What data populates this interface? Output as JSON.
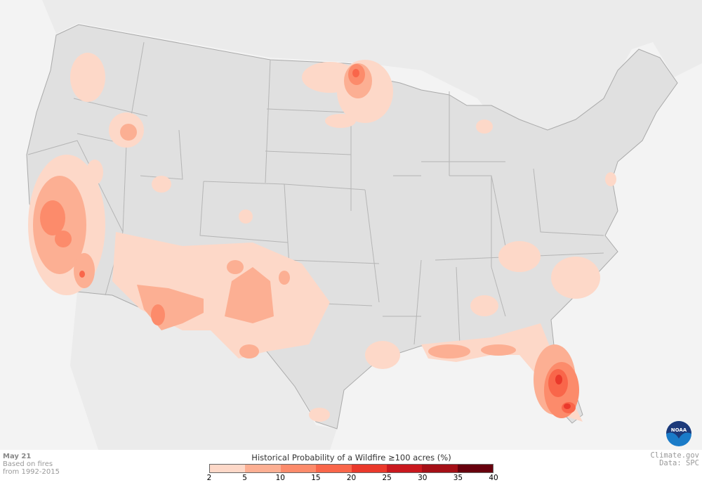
{
  "footer": {
    "date": "May 21",
    "note_line1": "Based on fires",
    "note_line2": "from 1992-2015",
    "credit": "Climate.gov",
    "data_source": "Data: SPC"
  },
  "legend": {
    "title": "Historical Probability of a Wildfire ≥100 acres (%)",
    "ticks": [
      "2",
      "5",
      "10",
      "15",
      "20",
      "25",
      "30",
      "35",
      "40"
    ],
    "colors": [
      "#fdd8c8",
      "#fcaf93",
      "#fc8b6b",
      "#f9664a",
      "#ea392b",
      "#c9181e",
      "#a40f16",
      "#67000d"
    ]
  },
  "logo": {
    "text": "NOAA"
  },
  "colors": {
    "ocean": "#f3f3f3",
    "land": "#e0e0e0",
    "neighbor_land": "#ebebeb",
    "border": "#aaaaaa"
  }
}
